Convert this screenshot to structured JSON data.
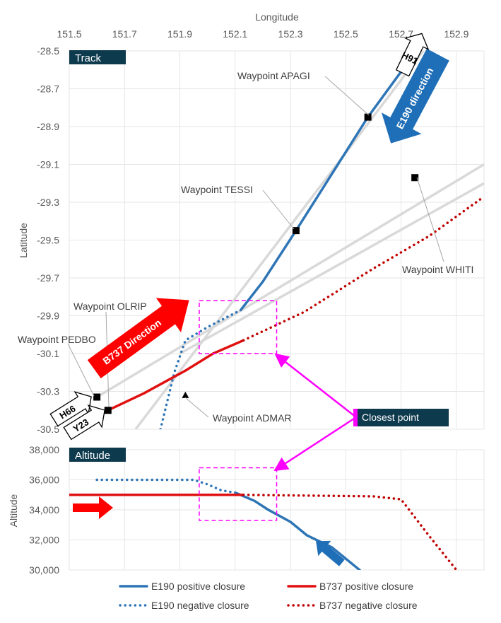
{
  "chart_data": [
    {
      "type": "line",
      "panel": "Track",
      "title": "Track",
      "xlabel": "Longitude",
      "ylabel": "Latitude",
      "xlim": [
        151.5,
        153.0
      ],
      "ylim": [
        -30.5,
        -28.5
      ],
      "x_ticks": [
        "151.5",
        "151.7",
        "151.9",
        "152.1",
        "152.3",
        "152.5",
        "152.7",
        "152.9"
      ],
      "y_ticks": [
        "-28.5",
        "-28.7",
        "-28.9",
        "-29.1",
        "-29.3",
        "-29.5",
        "-29.7",
        "-29.9",
        "-30.1",
        "-30.3",
        "-30.5"
      ],
      "grid": true,
      "routes": {
        "H91_Y23": [
          [
            151.74,
            -30.5
          ],
          [
            152.78,
            -28.5
          ]
        ],
        "H66": [
          [
            151.6,
            -30.33
          ],
          [
            153.0,
            -29.1
          ]
        ],
        "WHITI": [
          [
            151.9,
            -30.1
          ],
          [
            153.0,
            -29.2
          ]
        ]
      },
      "series": [
        {
          "name": "E190 positive closure",
          "color": "#2E75B6",
          "style": "solid",
          "points": [
            [
              152.12,
              -29.87
            ],
            [
              152.2,
              -29.72
            ],
            [
              152.32,
              -29.45
            ],
            [
              152.58,
              -28.85
            ],
            [
              152.72,
              -28.57
            ]
          ]
        },
        {
          "name": "E190 negative closure",
          "color": "#2E75B6",
          "style": "dotted",
          "points": [
            [
              151.83,
              -30.5
            ],
            [
              151.88,
              -30.2
            ],
            [
              151.92,
              -30.03
            ],
            [
              152.0,
              -29.96
            ],
            [
              152.12,
              -29.87
            ]
          ]
        },
        {
          "name": "B737 positive closure",
          "color": "#E01010",
          "style": "solid",
          "points": [
            [
              151.64,
              -30.4
            ],
            [
              151.77,
              -30.31
            ],
            [
              151.92,
              -30.19
            ],
            [
              152.02,
              -30.1
            ],
            [
              152.13,
              -30.03
            ]
          ]
        },
        {
          "name": "B737 negative closure",
          "color": "#C00000",
          "style": "dotted",
          "points": [
            [
              152.13,
              -30.03
            ],
            [
              152.35,
              -29.88
            ],
            [
              152.6,
              -29.65
            ],
            [
              152.8,
              -29.48
            ],
            [
              153.0,
              -29.27
            ]
          ]
        }
      ],
      "waypoints": [
        {
          "name": "Waypoint APAGI",
          "lon": 152.58,
          "lat": -28.85,
          "marker": "square"
        },
        {
          "name": "Waypoint TESSI",
          "lon": 152.32,
          "lat": -29.45,
          "marker": "square"
        },
        {
          "name": "Waypoint WHITI",
          "lon": 152.75,
          "lat": -29.17,
          "marker": "square"
        },
        {
          "name": "Waypoint OLRIP",
          "lon": 151.64,
          "lat": -30.4,
          "marker": "square"
        },
        {
          "name": "Waypoint PEDBO",
          "lon": 151.6,
          "lat": -30.33,
          "marker": "square"
        },
        {
          "name": "Waypoint ADMAR",
          "lon": 151.92,
          "lat": -30.32,
          "marker": "triangle"
        }
      ],
      "route_labels": [
        "H91",
        "H66",
        "Y23"
      ],
      "direction_labels": {
        "e190": "E190 direction",
        "b737": "B737 Direction"
      },
      "closest_box": {
        "lon": [
          151.97,
          152.25
        ],
        "lat": [
          -30.1,
          -29.82
        ]
      }
    },
    {
      "type": "line",
      "panel": "Altitude",
      "title": "Altitude",
      "ylabel": "Altitude",
      "xlim": [
        151.5,
        153.0
      ],
      "ylim": [
        30000,
        38000
      ],
      "y_ticks": [
        "30,000",
        "32,000",
        "34,000",
        "36,000",
        "38,000"
      ],
      "grid": true,
      "series": [
        {
          "name": "E190 negative closure",
          "color": "#2E75B6",
          "style": "dotted",
          "points": [
            [
              151.6,
              36000
            ],
            [
              151.95,
              36000
            ],
            [
              152.0,
              35700
            ],
            [
              152.05,
              35300
            ],
            [
              152.1,
              35150
            ]
          ]
        },
        {
          "name": "E190 positive closure",
          "color": "#2E75B6",
          "style": "solid",
          "points": [
            [
              152.1,
              35150
            ],
            [
              152.17,
              34600
            ],
            [
              152.22,
              34000
            ],
            [
              152.3,
              33200
            ],
            [
              152.36,
              32300
            ],
            [
              152.45,
              31500
            ],
            [
              152.55,
              30000
            ]
          ]
        },
        {
          "name": "B737 positive closure",
          "color": "#E01010",
          "style": "solid",
          "points": [
            [
              151.5,
              35000
            ],
            [
              152.13,
              35000
            ]
          ]
        },
        {
          "name": "B737 negative closure",
          "color": "#C00000",
          "style": "dotted",
          "points": [
            [
              152.13,
              35000
            ],
            [
              152.6,
              34900
            ],
            [
              152.7,
              34700
            ],
            [
              152.8,
              32300
            ],
            [
              152.9,
              30000
            ]
          ]
        }
      ],
      "closest_box": {
        "lon": [
          151.97,
          152.25
        ],
        "alt": [
          33300,
          36800
        ]
      }
    }
  ],
  "annotation": {
    "closest_point": "Closest point"
  },
  "legend": [
    {
      "label": "E190 positive closure",
      "color": "#2E75B6",
      "style": "solid"
    },
    {
      "label": "B737 positive closure",
      "color": "#E01010",
      "style": "solid"
    },
    {
      "label": "E190 negative closure",
      "color": "#2E75B6",
      "style": "dotted"
    },
    {
      "label": "B737 negative closure",
      "color": "#C00000",
      "style": "dotted"
    }
  ],
  "colors": {
    "route": "#D9D9D9",
    "grid": "#E6E6E6",
    "magenta": "#FF00FF",
    "panel_label_bg": "#0E3A4E"
  }
}
